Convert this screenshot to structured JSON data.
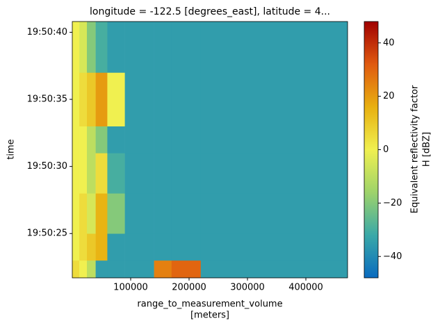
{
  "chart_data": {
    "type": "heatmap",
    "title": "longitude = -122.5 [degrees_east], latitude = 4...",
    "xlabel": [
      "range_to_measurement_volume",
      "[meters]"
    ],
    "ylabel": "time",
    "colorbar_label": [
      "Equivalent reflectivity factor",
      "H [dBZ]"
    ],
    "xlim": [
      0,
      471400
    ],
    "xticks": [
      100000,
      200000,
      300000,
      400000
    ],
    "ylim": [
      21.7,
      40.8
    ],
    "yticks": [
      {
        "value": 25,
        "label": "19:50:25"
      },
      {
        "value": 30,
        "label": "19:50:30"
      },
      {
        "value": 35,
        "label": "19:50:35"
      },
      {
        "value": 40,
        "label": "19:50:40"
      }
    ],
    "clim": [
      -48,
      48
    ],
    "cticks": [
      {
        "value": -40,
        "label": "−40"
      },
      {
        "value": -20,
        "label": "−20"
      },
      0,
      20,
      40
    ],
    "colormap": [
      "#0a6bbf",
      "#3aa9a8",
      "#9ed36a",
      "#f0f050",
      "#e8b010",
      "#e05a10",
      "#a00000"
    ],
    "x_edges": [
      0,
      12000,
      25000,
      40000,
      60000,
      90000,
      140000,
      170000,
      220000,
      471400
    ],
    "y_edges": [
      21.7,
      23,
      25,
      28,
      31,
      33,
      37,
      40.8
    ],
    "z": [
      [
        5,
        0,
        -10,
        -35,
        -35,
        -35,
        25,
        30,
        -35
      ],
      [
        0,
        5,
        10,
        15,
        -35,
        -35,
        -35,
        -35,
        -35
      ],
      [
        0,
        5,
        -5,
        15,
        -20,
        -35,
        -35,
        -35,
        -35
      ],
      [
        0,
        0,
        -10,
        5,
        -30,
        -35,
        -35,
        -35,
        -35
      ],
      [
        0,
        0,
        -10,
        -20,
        -35,
        -35,
        -35,
        -35,
        -35
      ],
      [
        0,
        5,
        10,
        20,
        0,
        -35,
        -35,
        -35,
        -35
      ],
      [
        0,
        -5,
        -20,
        -30,
        -35,
        -35,
        -35,
        -35,
        -35
      ]
    ]
  }
}
